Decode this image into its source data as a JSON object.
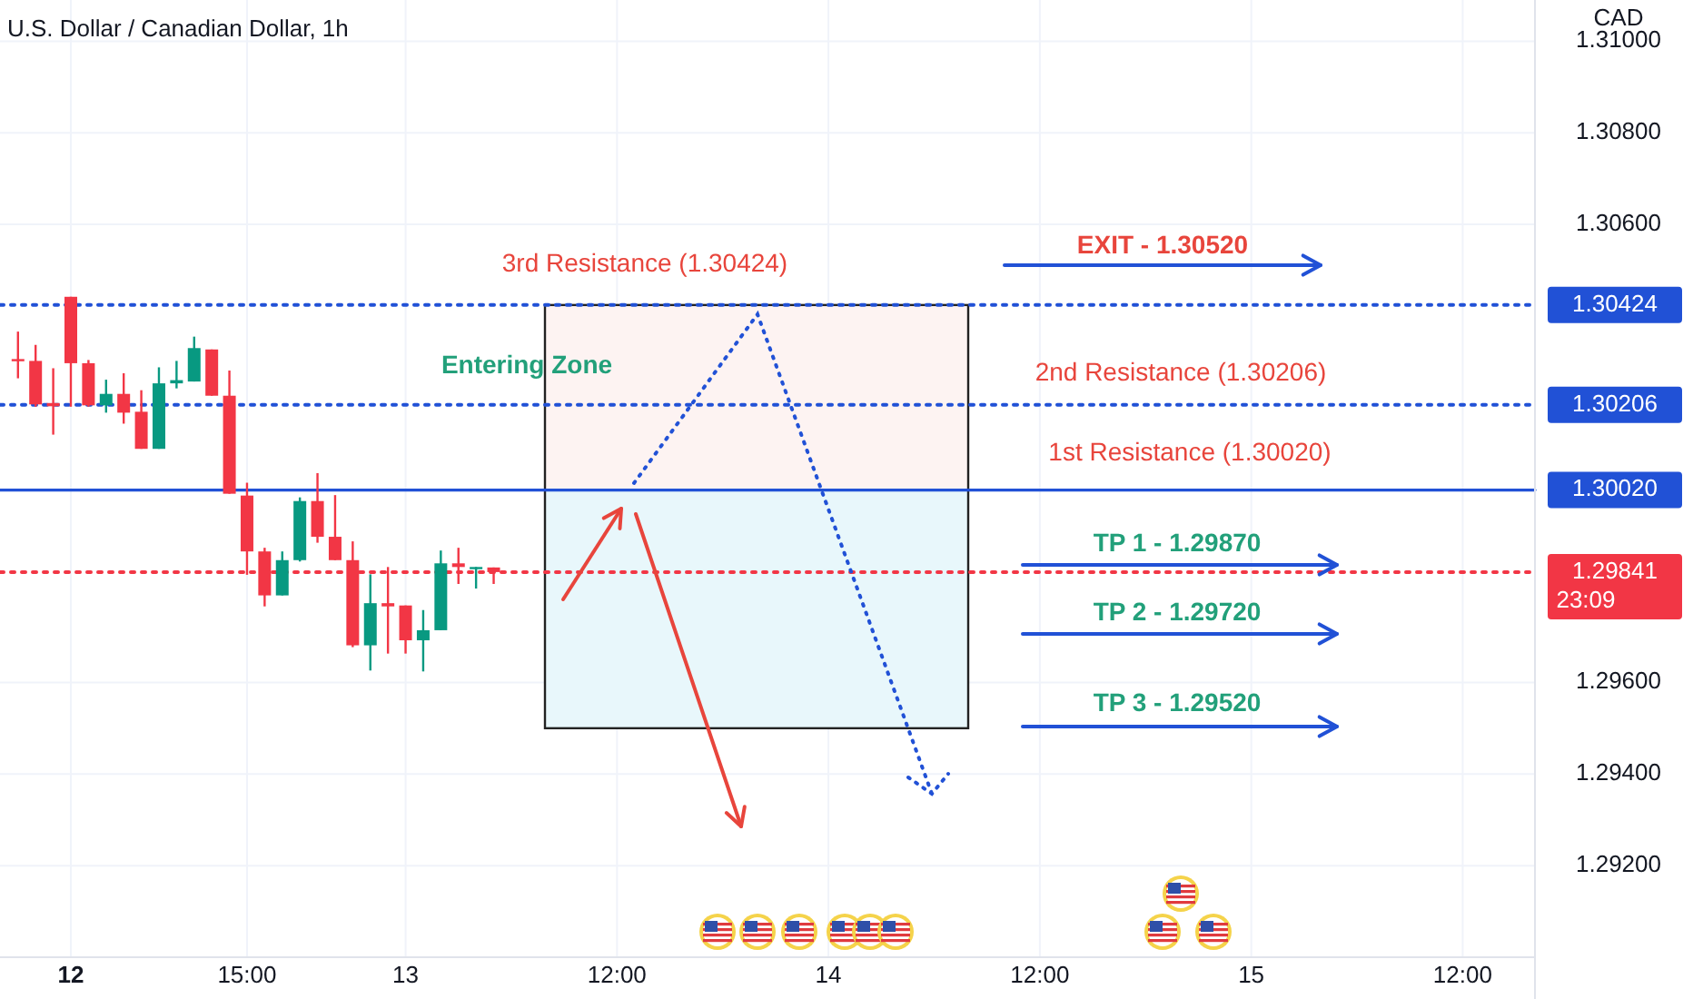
{
  "chart_data": {
    "type": "candlestick",
    "title": "U.S. Dollar / Canadian Dollar, 1h",
    "ylabel": "CAD",
    "categories": [
      null,
      null,
      null,
      null,
      "12",
      null,
      null,
      null,
      null,
      null,
      null,
      null,
      null,
      null,
      "15:00",
      null,
      null,
      null,
      null,
      null,
      null,
      null,
      null,
      "13",
      null,
      null,
      null,
      null,
      null,
      null,
      null,
      null,
      null,
      null,
      null,
      "12:00",
      null,
      null,
      null,
      null,
      null,
      null,
      null,
      null,
      null,
      null,
      null,
      "14",
      null,
      null,
      null,
      null,
      null,
      null,
      null,
      null,
      null,
      null,
      null,
      "12:00",
      null,
      null,
      null,
      null,
      null,
      null,
      null,
      null,
      null,
      null,
      null,
      "15",
      null,
      null,
      null,
      null,
      null,
      null,
      null,
      null,
      null,
      null,
      null,
      "12:00",
      null,
      null,
      null,
      null
    ],
    "ohlc": [
      null,
      [
        1.30306,
        1.30366,
        1.30264,
        1.30302
      ],
      [
        1.30302,
        1.30337,
        1.30202,
        1.30207
      ],
      [
        1.3021,
        1.30286,
        1.30141,
        1.30203
      ],
      [
        1.30442,
        1.30442,
        1.30202,
        1.30297
      ],
      [
        1.30297,
        1.30304,
        1.30202,
        1.30205
      ],
      [
        1.30205,
        1.30261,
        1.30189,
        1.3023
      ],
      [
        1.3023,
        1.30275,
        1.30165,
        1.30189
      ],
      [
        1.30191,
        1.30238,
        1.3011,
        1.3011
      ],
      [
        1.3011,
        1.30288,
        1.3011,
        1.30253
      ],
      [
        1.30253,
        1.30302,
        1.30242,
        1.3026
      ],
      [
        1.30257,
        1.30355,
        1.30257,
        1.3033
      ],
      [
        1.30327,
        1.30327,
        1.30226,
        1.30226
      ],
      [
        1.30226,
        1.30281,
        1.30012,
        1.30012
      ],
      [
        1.30008,
        1.30036,
        1.29835,
        1.29886
      ],
      [
        1.29886,
        1.29894,
        1.29766,
        1.2979
      ],
      [
        1.2979,
        1.29886,
        1.2979,
        1.29867
      ],
      [
        1.29867,
        1.30004,
        1.29864,
        1.29996
      ],
      [
        1.29996,
        1.30057,
        1.29905,
        1.29918
      ],
      [
        1.29918,
        1.30009,
        1.29867,
        1.29867
      ],
      [
        1.29867,
        1.29908,
        1.29677,
        1.29681
      ],
      [
        1.29681,
        1.29836,
        1.29626,
        1.29773
      ],
      [
        1.29773,
        1.29852,
        1.29663,
        1.29766
      ],
      [
        1.29768,
        1.29768,
        1.29663,
        1.29692
      ],
      [
        1.29692,
        1.29758,
        1.29624,
        1.29714
      ],
      [
        1.29714,
        1.29888,
        1.29714,
        1.2986
      ],
      [
        1.2986,
        1.29894,
        1.29815,
        1.29852
      ],
      [
        1.2985,
        1.29852,
        1.29805,
        1.29852
      ],
      [
        1.29851,
        1.29851,
        1.29815,
        1.29841
      ],
      null,
      null,
      null,
      null,
      null,
      null,
      null,
      null,
      null,
      null,
      null,
      null,
      null,
      null,
      null,
      null,
      null,
      null,
      null,
      null,
      null,
      null,
      null,
      null,
      null,
      null,
      null,
      null,
      null,
      null,
      null,
      null,
      null,
      null,
      null,
      null,
      null,
      null,
      null,
      null,
      null,
      null,
      null,
      null,
      null,
      null,
      null,
      null,
      null,
      null,
      null,
      null,
      null,
      null,
      null,
      null,
      null,
      null,
      null
    ],
    "colors": [
      null,
      "#f23645",
      "#f23645",
      "#f23645",
      "#f23645",
      "#f23645",
      "#089981",
      "#f23645",
      "#f23645",
      "#089981",
      "#089981",
      "#089981",
      "#f23645",
      "#f23645",
      "#f23645",
      "#f23645",
      "#089981",
      "#089981",
      "#f23645",
      "#f23645",
      "#f23645",
      "#089981",
      "#f23645",
      "#f23645",
      "#089981",
      "#089981",
      "#f23645",
      "#089981",
      "#f23645",
      null,
      null,
      null,
      null,
      null,
      null,
      null,
      null,
      null,
      null,
      null,
      null,
      null,
      null,
      null,
      null,
      null,
      null,
      null,
      null,
      null,
      null,
      null,
      null,
      null,
      null,
      null,
      null,
      null,
      null,
      null,
      null,
      null,
      null,
      null,
      null,
      null,
      null,
      null,
      null,
      null,
      null,
      null,
      null,
      null,
      null,
      null,
      null,
      null,
      null,
      null,
      null,
      null,
      null,
      null,
      null,
      null,
      null,
      null
    ],
    "ylim": [
      1.29,
      1.3109
    ],
    "yticks": [
      {
        "value": 1.292,
        "label": "1.29200"
      },
      {
        "value": 1.294,
        "label": "1.29400"
      },
      {
        "value": 1.296,
        "label": "1.29600"
      },
      {
        "value": 1.306,
        "label": "1.30600"
      },
      {
        "value": 1.308,
        "label": "1.30800"
      },
      {
        "value": 1.31,
        "label": "1.31000"
      }
    ],
    "grid": true,
    "ref_lines": [
      {
        "axis": "y",
        "value": 1.30424,
        "label": "1.30424",
        "color": "#2151d6",
        "line_style": "dotted"
      },
      {
        "axis": "y",
        "value": 1.30206,
        "label": "1.30206",
        "color": "#2151d6",
        "line_style": "dotted"
      },
      {
        "axis": "y",
        "value": 1.3002,
        "label": "1.30020",
        "color": "#2151d6",
        "line_style": "solid"
      },
      {
        "axis": "y",
        "value": 1.29841,
        "label": "1.29841",
        "color": "#f23645",
        "line_style": "dotted"
      }
    ],
    "bands": [
      {
        "axis": "y",
        "from": 1.3002,
        "to": 1.30424,
        "color": "#fdf3f2"
      },
      {
        "axis": "y",
        "from": 1.295,
        "to": 1.3002,
        "color": "#e8f7fb"
      }
    ],
    "annotations": [
      "3rd Resistance (1.30424)",
      "Entering Zone",
      "2nd Resistance (1.30206)",
      "1st Resistance (1.30020)",
      "EXIT - 1.30520",
      "TP 1 - 1.29870",
      "TP 2 - 1.29720",
      "TP 3 - 1.29520",
      "23:09"
    ]
  }
}
